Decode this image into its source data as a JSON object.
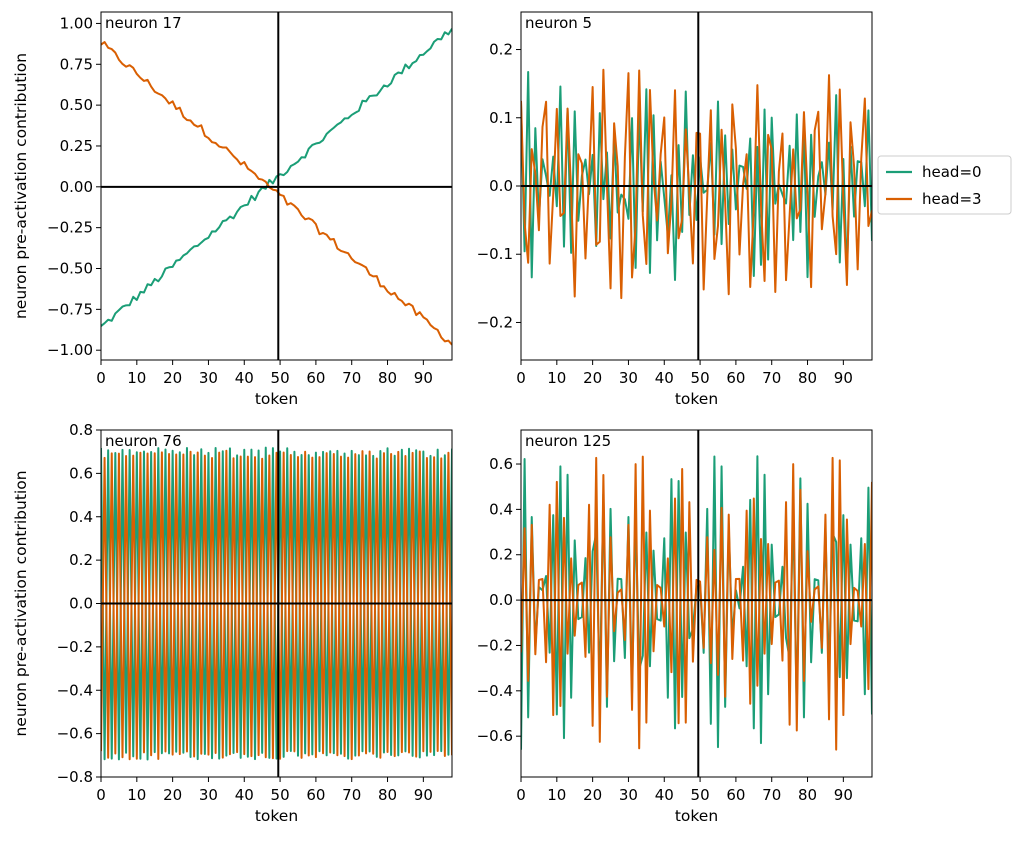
{
  "chart_data": {
    "type": "line",
    "xlabel": "token",
    "ylabel": "neuron pre-activation contribution",
    "xlim": [
      0,
      98
    ],
    "x_ticks": [
      0,
      10,
      20,
      30,
      40,
      50,
      60,
      70,
      80,
      90
    ],
    "vertical_marker_x": 49.5,
    "legend": {
      "placement": "right-outside",
      "entries": [
        "head=0",
        "head=3"
      ]
    },
    "colors": {
      "head0": "#1b9e77",
      "head3": "#d95f02",
      "axis": "#000000"
    },
    "series_names": [
      "head=0",
      "head=3"
    ],
    "panels": [
      {
        "title": "neuron 17",
        "ylim": [
          -1.06,
          1.07
        ],
        "y_ticks": [
          -1.0,
          -0.75,
          -0.5,
          -0.25,
          0.0,
          0.25,
          0.5,
          0.75,
          1.0
        ],
        "y_tick_labels": [
          "−1.00",
          "−0.75",
          "−0.50",
          "−0.25",
          "0.00",
          "0.25",
          "0.50",
          "0.75",
          "1.00"
        ],
        "pattern": "linear",
        "params": {
          "h0_start": -0.86,
          "h0_end": 0.97,
          "h3_start": 0.88,
          "h3_end": -0.96,
          "noise": 0.025
        }
      },
      {
        "title": "neuron 5",
        "ylim": [
          -0.255,
          0.255
        ],
        "y_ticks": [
          -0.2,
          -0.1,
          0.0,
          0.1,
          0.2
        ],
        "y_tick_labels": [
          "−0.2",
          "−0.1",
          "0.0",
          "0.1",
          "0.2"
        ],
        "pattern": "noisy",
        "params": {
          "h0_amp": 0.11,
          "h3_amp": 0.13,
          "h0_period": 2.2,
          "h3_period": 3.3
        }
      },
      {
        "title": "neuron 76",
        "ylim": [
          -0.8,
          0.8
        ],
        "y_ticks": [
          -0.8,
          -0.6,
          -0.4,
          -0.2,
          0.0,
          0.2,
          0.4,
          0.6,
          0.8
        ],
        "y_tick_labels": [
          "−0.8",
          "−0.6",
          "−0.4",
          "−0.2",
          "0.0",
          "0.2",
          "0.4",
          "0.6",
          "0.8"
        ],
        "pattern": "alternating",
        "params": {
          "amp": 0.7
        }
      },
      {
        "title": "neuron 125",
        "ylim": [
          -0.78,
          0.75
        ],
        "y_ticks": [
          -0.6,
          -0.4,
          -0.2,
          0.0,
          0.2,
          0.4,
          0.6
        ],
        "y_tick_labels": [
          "−0.6",
          "−0.4",
          "−0.2",
          "0.0",
          "0.2",
          "0.4",
          "0.6"
        ],
        "pattern": "beat",
        "params": {
          "amp": 0.66,
          "period": 2.2,
          "beat_period": 27
        }
      }
    ]
  }
}
